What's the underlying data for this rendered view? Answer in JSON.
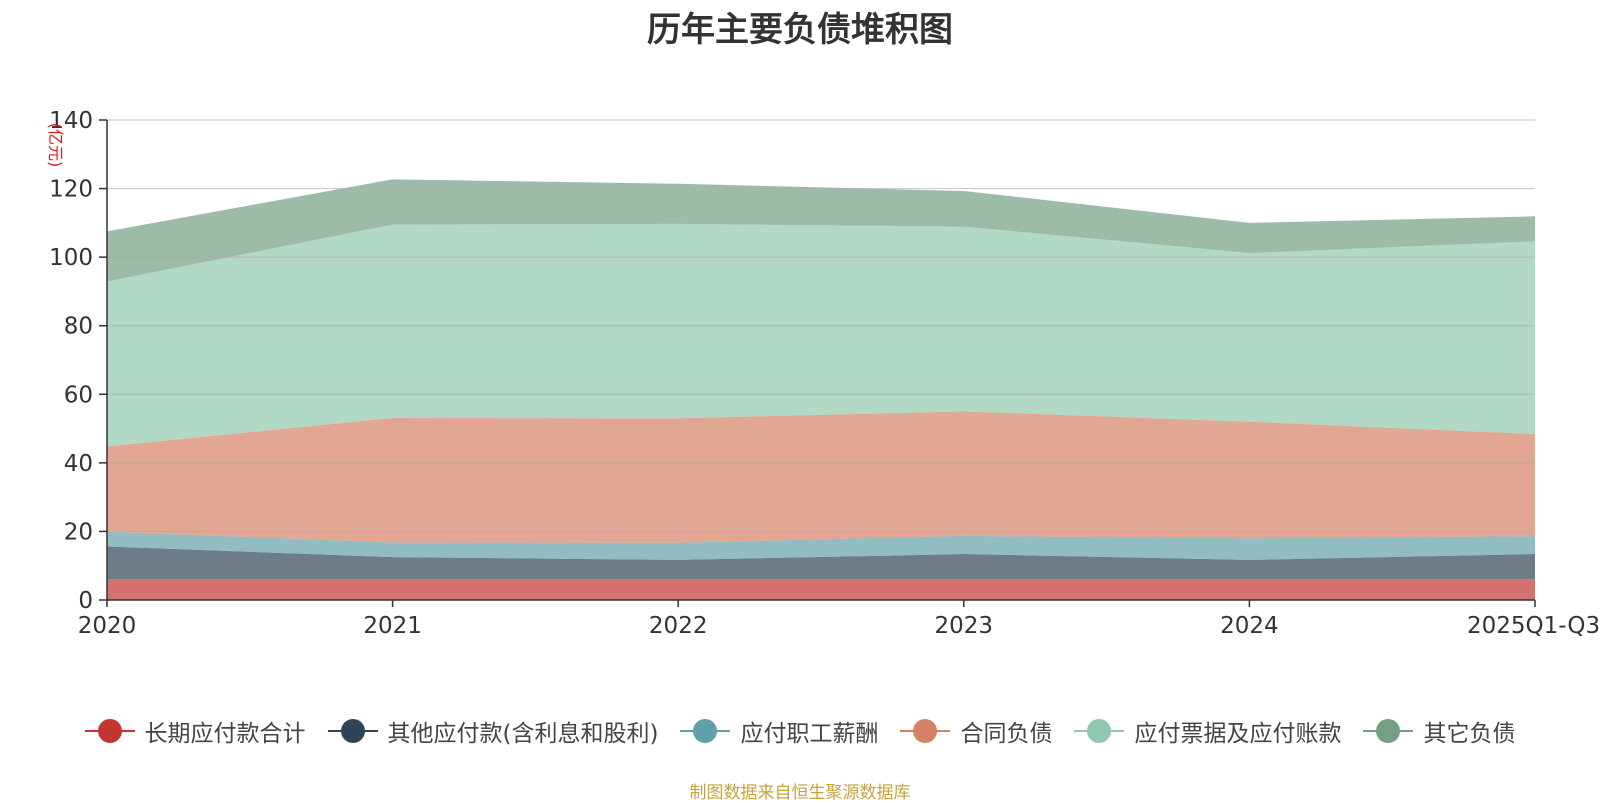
{
  "source_note": "制图数据来自恒生聚源数据库",
  "chart_data": {
    "type": "area",
    "stacked": true,
    "title": "历年主要负债堆积图",
    "ylabel": "(亿元)",
    "xlabel": "",
    "x": [
      "2020",
      "2021",
      "2022",
      "2023",
      "2024",
      "2025Q1-Q3"
    ],
    "ylim": [
      0,
      140
    ],
    "yticks": [
      0,
      20,
      40,
      60,
      80,
      100,
      120,
      140
    ],
    "grid": true,
    "legend_position": "bottom",
    "series": [
      {
        "name": "长期应付款合计",
        "color": "#c23531",
        "values": [
          6.1,
          6.1,
          6.1,
          6.1,
          6.1,
          6.1
        ]
      },
      {
        "name": "其他应付款(含利息和股利)",
        "color": "#2f4554",
        "values": [
          9.5,
          6.4,
          5.6,
          7.3,
          5.6,
          7.3
        ]
      },
      {
        "name": "应付职工薪酬",
        "color": "#61a0a8",
        "values": [
          4.3,
          4.3,
          5.0,
          5.3,
          6.3,
          5.2
        ]
      },
      {
        "name": "合同负债",
        "color": "#d48265",
        "values": [
          24.9,
          36.3,
          36.3,
          36.3,
          34.0,
          29.8
        ]
      },
      {
        "name": "应付票据及应付账款",
        "color": "#91c7ae",
        "values": [
          48.1,
          56.4,
          56.7,
          53.9,
          49.2,
          56.2
        ]
      },
      {
        "name": "其它负债",
        "color": "#749f83",
        "values": [
          14.6,
          13.2,
          11.7,
          10.4,
          8.8,
          7.3
        ]
      }
    ]
  }
}
